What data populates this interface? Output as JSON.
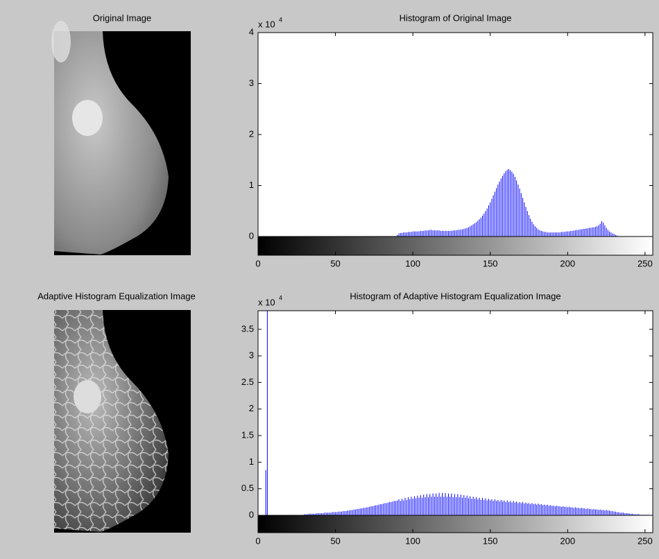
{
  "images": [
    {
      "title": "Original Image"
    },
    {
      "title": "Adaptive Histogram Equalization Image"
    }
  ],
  "chart_data": [
    {
      "type": "stem",
      "title": "Histogram of Original Image",
      "y_exponent": {
        "base": "x 10",
        "power": "4"
      },
      "color": "#0000ff",
      "xlim": [
        0,
        255
      ],
      "ylim": [
        0,
        4
      ],
      "xticks": [
        0,
        50,
        100,
        150,
        200,
        250
      ],
      "yticks": [
        0,
        1,
        2,
        3,
        4
      ],
      "x": [
        0,
        1,
        2,
        3,
        4,
        5,
        6,
        7,
        8,
        9,
        10,
        11,
        12,
        13,
        14,
        15,
        16,
        17,
        18,
        19,
        20,
        21,
        22,
        23,
        24,
        25,
        26,
        27,
        28,
        29,
        30,
        31,
        32,
        33,
        34,
        35,
        36,
        37,
        38,
        39,
        40,
        41,
        42,
        43,
        44,
        45,
        46,
        47,
        48,
        49,
        50,
        51,
        52,
        53,
        54,
        55,
        56,
        57,
        58,
        59,
        60,
        61,
        62,
        63,
        64,
        65,
        66,
        67,
        68,
        69,
        70,
        71,
        72,
        73,
        74,
        75,
        76,
        77,
        78,
        79,
        80,
        81,
        82,
        83,
        84,
        85,
        86,
        87,
        88,
        89,
        90,
        91,
        92,
        93,
        94,
        95,
        96,
        97,
        98,
        99,
        100,
        101,
        102,
        103,
        104,
        105,
        106,
        107,
        108,
        109,
        110,
        111,
        112,
        113,
        114,
        115,
        116,
        117,
        118,
        119,
        120,
        121,
        122,
        123,
        124,
        125,
        126,
        127,
        128,
        129,
        130,
        131,
        132,
        133,
        134,
        135,
        136,
        137,
        138,
        139,
        140,
        141,
        142,
        143,
        144,
        145,
        146,
        147,
        148,
        149,
        150,
        151,
        152,
        153,
        154,
        155,
        156,
        157,
        158,
        159,
        160,
        161,
        162,
        163,
        164,
        165,
        166,
        167,
        168,
        169,
        170,
        171,
        172,
        173,
        174,
        175,
        176,
        177,
        178,
        179,
        180,
        181,
        182,
        183,
        184,
        185,
        186,
        187,
        188,
        189,
        190,
        191,
        192,
        193,
        194,
        195,
        196,
        197,
        198,
        199,
        200,
        201,
        202,
        203,
        204,
        205,
        206,
        207,
        208,
        209,
        210,
        211,
        212,
        213,
        214,
        215,
        216,
        217,
        218,
        219,
        220,
        221,
        222,
        223,
        224,
        225,
        226,
        227,
        228,
        229,
        230,
        231,
        232,
        233,
        234,
        235,
        236,
        237,
        238,
        239,
        240,
        241,
        242,
        243,
        244,
        245,
        246,
        247,
        248,
        249,
        250,
        251,
        252,
        253,
        254,
        255
      ],
      "values": [
        4,
        0,
        0,
        0,
        0,
        0,
        0,
        0,
        0,
        0,
        0,
        0,
        0,
        0,
        0,
        0,
        0,
        0,
        0,
        0,
        0,
        0,
        0,
        0,
        0,
        0,
        0,
        0,
        0,
        0,
        0,
        0,
        0,
        0,
        0,
        0,
        0,
        0,
        0,
        0,
        0,
        0,
        0,
        0,
        0,
        0,
        0,
        0,
        0,
        0,
        0,
        0,
        0,
        0,
        0,
        0,
        0,
        0,
        0,
        0,
        0,
        0,
        0,
        0,
        0,
        0,
        0,
        0,
        0,
        0,
        0,
        0,
        0,
        0,
        0,
        0,
        0,
        0,
        0,
        0,
        0,
        0,
        0,
        0,
        0,
        0,
        0,
        0,
        0,
        0,
        0.03,
        0.06,
        0.07,
        0.07,
        0.08,
        0.08,
        0.08,
        0.09,
        0.09,
        0.09,
        0.1,
        0.1,
        0.1,
        0.1,
        0.1,
        0.11,
        0.11,
        0.11,
        0.12,
        0.12,
        0.12,
        0.13,
        0.13,
        0.12,
        0.12,
        0.12,
        0.12,
        0.12,
        0.11,
        0.11,
        0.11,
        0.11,
        0.11,
        0.11,
        0.11,
        0.11,
        0.12,
        0.12,
        0.12,
        0.13,
        0.13,
        0.14,
        0.14,
        0.15,
        0.16,
        0.17,
        0.18,
        0.2,
        0.22,
        0.24,
        0.26,
        0.28,
        0.31,
        0.34,
        0.37,
        0.41,
        0.45,
        0.5,
        0.55,
        0.61,
        0.67,
        0.74,
        0.81,
        0.88,
        0.95,
        1.02,
        1.08,
        1.14,
        1.19,
        1.24,
        1.28,
        1.31,
        1.32,
        1.3,
        1.27,
        1.23,
        1.17,
        1.1,
        1.02,
        0.94,
        0.85,
        0.76,
        0.67,
        0.58,
        0.5,
        0.42,
        0.35,
        0.29,
        0.24,
        0.2,
        0.17,
        0.14,
        0.12,
        0.11,
        0.1,
        0.09,
        0.09,
        0.08,
        0.08,
        0.08,
        0.08,
        0.08,
        0.08,
        0.08,
        0.08,
        0.08,
        0.09,
        0.09,
        0.09,
        0.1,
        0.1,
        0.1,
        0.11,
        0.11,
        0.12,
        0.12,
        0.13,
        0.13,
        0.14,
        0.14,
        0.15,
        0.15,
        0.16,
        0.16,
        0.17,
        0.17,
        0.18,
        0.18,
        0.19,
        0.2,
        0.22,
        0.25,
        0.3,
        0.27,
        0.22,
        0.17,
        0.13,
        0.1,
        0.08,
        0.06,
        0.05,
        0.03,
        0.02,
        0,
        0,
        0,
        0,
        0,
        0,
        0,
        0,
        0,
        0,
        0,
        0,
        0,
        0,
        0,
        0,
        0,
        0,
        0,
        0,
        0,
        0,
        0
      ]
    },
    {
      "type": "stem",
      "title": "Histogram of Adaptive Histogram Equalization Image",
      "y_exponent": {
        "base": "x 10",
        "power": "4"
      },
      "color": "#0000ff",
      "xlim": [
        0,
        255
      ],
      "ylim": [
        0,
        3.85
      ],
      "xticks": [
        0,
        50,
        100,
        150,
        200,
        250
      ],
      "yticks": [
        0,
        0.5,
        1,
        1.5,
        2,
        2.5,
        3,
        3.5
      ],
      "x": [
        0,
        1,
        2,
        3,
        4,
        5,
        6,
        7,
        8,
        9,
        10,
        11,
        12,
        13,
        14,
        15,
        16,
        17,
        18,
        19,
        20,
        21,
        22,
        23,
        24,
        25,
        26,
        27,
        28,
        29,
        30,
        31,
        32,
        33,
        34,
        35,
        36,
        37,
        38,
        39,
        40,
        41,
        42,
        43,
        44,
        45,
        46,
        47,
        48,
        49,
        50,
        51,
        52,
        53,
        54,
        55,
        56,
        57,
        58,
        59,
        60,
        61,
        62,
        63,
        64,
        65,
        66,
        67,
        68,
        69,
        70,
        71,
        72,
        73,
        74,
        75,
        76,
        77,
        78,
        79,
        80,
        81,
        82,
        83,
        84,
        85,
        86,
        87,
        88,
        89,
        90,
        91,
        92,
        93,
        94,
        95,
        96,
        97,
        98,
        99,
        100,
        101,
        102,
        103,
        104,
        105,
        106,
        107,
        108,
        109,
        110,
        111,
        112,
        113,
        114,
        115,
        116,
        117,
        118,
        119,
        120,
        121,
        122,
        123,
        124,
        125,
        126,
        127,
        128,
        129,
        130,
        131,
        132,
        133,
        134,
        135,
        136,
        137,
        138,
        139,
        140,
        141,
        142,
        143,
        144,
        145,
        146,
        147,
        148,
        149,
        150,
        151,
        152,
        153,
        154,
        155,
        156,
        157,
        158,
        159,
        160,
        161,
        162,
        163,
        164,
        165,
        166,
        167,
        168,
        169,
        170,
        171,
        172,
        173,
        174,
        175,
        176,
        177,
        178,
        179,
        180,
        181,
        182,
        183,
        184,
        185,
        186,
        187,
        188,
        189,
        190,
        191,
        192,
        193,
        194,
        195,
        196,
        197,
        198,
        199,
        200,
        201,
        202,
        203,
        204,
        205,
        206,
        207,
        208,
        209,
        210,
        211,
        212,
        213,
        214,
        215,
        216,
        217,
        218,
        219,
        220,
        221,
        222,
        223,
        224,
        225,
        226,
        227,
        228,
        229,
        230,
        231,
        232,
        233,
        234,
        235,
        236,
        237,
        238,
        239,
        240,
        241,
        242,
        243,
        244,
        245,
        246,
        247,
        248,
        249,
        250,
        251,
        252,
        253,
        254,
        255
      ],
      "values": [
        0,
        0,
        0,
        0,
        0,
        0.85,
        3.85,
        0,
        0,
        0,
        0,
        0,
        0,
        0,
        0,
        0,
        0,
        0,
        0,
        0,
        0,
        0,
        0,
        0,
        0,
        0,
        0,
        0,
        0,
        0,
        0.02,
        0.02,
        0.02,
        0.03,
        0.03,
        0.03,
        0.03,
        0.03,
        0.04,
        0.04,
        0.04,
        0.04,
        0.04,
        0.05,
        0.05,
        0.05,
        0.05,
        0.05,
        0.06,
        0.06,
        0.06,
        0.06,
        0.07,
        0.07,
        0.07,
        0.08,
        0.08,
        0.08,
        0.09,
        0.09,
        0.1,
        0.1,
        0.11,
        0.11,
        0.12,
        0.12,
        0.13,
        0.13,
        0.14,
        0.14,
        0.15,
        0.15,
        0.16,
        0.17,
        0.17,
        0.18,
        0.19,
        0.19,
        0.2,
        0.21,
        0.21,
        0.22,
        0.23,
        0.23,
        0.24,
        0.25,
        0.25,
        0.26,
        0.27,
        0.27,
        0.28,
        0.3,
        0.27,
        0.31,
        0.28,
        0.33,
        0.29,
        0.34,
        0.3,
        0.35,
        0.31,
        0.36,
        0.32,
        0.37,
        0.33,
        0.38,
        0.33,
        0.39,
        0.34,
        0.4,
        0.34,
        0.4,
        0.35,
        0.41,
        0.35,
        0.41,
        0.35,
        0.42,
        0.35,
        0.42,
        0.35,
        0.42,
        0.35,
        0.41,
        0.35,
        0.41,
        0.34,
        0.4,
        0.34,
        0.4,
        0.34,
        0.39,
        0.33,
        0.38,
        0.33,
        0.37,
        0.32,
        0.36,
        0.31,
        0.35,
        0.31,
        0.34,
        0.3,
        0.33,
        0.29,
        0.33,
        0.29,
        0.32,
        0.28,
        0.31,
        0.28,
        0.3,
        0.27,
        0.3,
        0.27,
        0.29,
        0.26,
        0.29,
        0.26,
        0.28,
        0.25,
        0.28,
        0.25,
        0.27,
        0.24,
        0.27,
        0.24,
        0.26,
        0.23,
        0.25,
        0.23,
        0.25,
        0.22,
        0.24,
        0.22,
        0.23,
        0.21,
        0.23,
        0.21,
        0.22,
        0.2,
        0.22,
        0.2,
        0.21,
        0.19,
        0.2,
        0.19,
        0.2,
        0.18,
        0.19,
        0.18,
        0.18,
        0.17,
        0.18,
        0.17,
        0.17,
        0.16,
        0.17,
        0.16,
        0.16,
        0.15,
        0.16,
        0.15,
        0.15,
        0.14,
        0.15,
        0.14,
        0.14,
        0.13,
        0.14,
        0.13,
        0.13,
        0.12,
        0.13,
        0.12,
        0.12,
        0.11,
        0.12,
        0.11,
        0.11,
        0.1,
        0.11,
        0.1,
        0.1,
        0.09,
        0.1,
        0.09,
        0.09,
        0.08,
        0.08,
        0.07,
        0.07,
        0.06,
        0.06,
        0.05,
        0.05,
        0.05,
        0.04,
        0.04,
        0.04,
        0.03,
        0.03,
        0.03,
        0.02,
        0.02,
        0.02,
        0.02,
        0.01,
        0.01,
        0.01,
        0.01,
        0.01,
        0.01,
        0,
        0,
        0
      ]
    }
  ]
}
